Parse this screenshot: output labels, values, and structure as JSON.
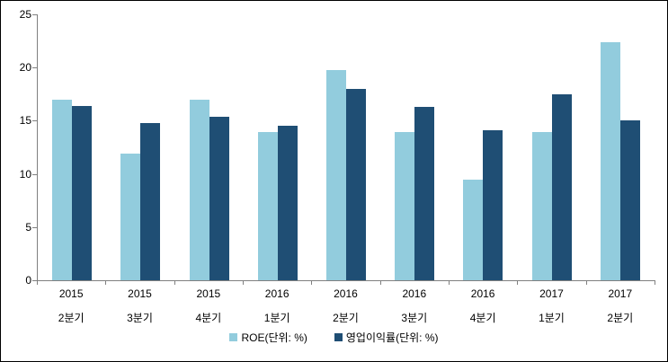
{
  "chart_data": {
    "type": "bar",
    "title": "",
    "xlabel": "",
    "ylabel": "",
    "categories": [
      "2015 2분기",
      "2015 3분기",
      "2015 4분기",
      "2016 1분기",
      "2016 2분기",
      "2016 3분기",
      "2016 4분기",
      "2017 1분기",
      "2017 2분기"
    ],
    "series": [
      {
        "name": "ROE(단위: %)",
        "color": "#92CCDD",
        "values": [
          17.0,
          11.9,
          17.0,
          13.9,
          19.8,
          13.9,
          9.5,
          13.9,
          22.4
        ]
      },
      {
        "name": "영업이익률(단위: %)",
        "color": "#1F4E74",
        "values": [
          16.4,
          14.8,
          15.4,
          14.5,
          18.0,
          16.3,
          14.1,
          17.5,
          15.0
        ]
      }
    ],
    "ylim": [
      0,
      25
    ],
    "yticks": [
      0,
      5,
      10,
      15,
      20,
      25
    ],
    "grid": false,
    "legend_position": "bottom"
  },
  "colors": {
    "background": "#FFFFFF",
    "frame_border": "#000000",
    "axis": "#808080",
    "text": "#000000",
    "series_light": "#92CCDD",
    "series_dark": "#1F4E74"
  }
}
